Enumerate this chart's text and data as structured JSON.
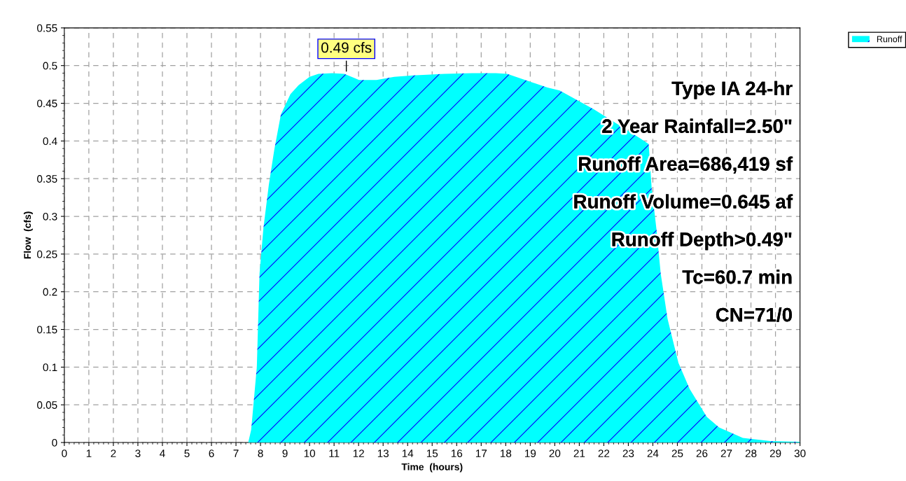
{
  "chart_data": {
    "type": "area",
    "xlabel": "Time  (hours)",
    "ylabel": "Flow  (cfs)",
    "x": [
      0,
      7.5,
      7.62,
      7.85,
      7.96,
      8.12,
      8.34,
      8.56,
      8.83,
      9.22,
      9.55,
      10.0,
      10.36,
      10.92,
      11.42,
      12.02,
      12.73,
      13.45,
      14.2,
      15.5,
      16.63,
      17.6,
      18.06,
      19.7,
      20.2,
      21.6,
      23.5,
      23.83,
      23.95,
      24.15,
      24.32,
      24.6,
      25.04,
      25.5,
      26.2,
      26.7,
      27.67,
      28.8,
      30
    ],
    "series": [
      {
        "name": "Runoff",
        "color": "#00ffff",
        "values": [
          0,
          0,
          0.017,
          0.1,
          0.224,
          0.285,
          0.342,
          0.388,
          0.435,
          0.462,
          0.474,
          0.485,
          0.489,
          0.49,
          0.489,
          0.481,
          0.481,
          0.485,
          0.487,
          0.489,
          0.49,
          0.49,
          0.489,
          0.471,
          0.467,
          0.442,
          0.403,
          0.396,
          0.338,
          0.282,
          0.224,
          0.164,
          0.106,
          0.071,
          0.034,
          0.02,
          0.006,
          0.002,
          0.001
        ]
      }
    ],
    "xlim": [
      0,
      30
    ],
    "xticks": [
      0,
      1,
      2,
      3,
      4,
      5,
      6,
      7,
      8,
      9,
      10,
      11,
      12,
      13,
      14,
      15,
      16,
      17,
      18,
      19,
      20,
      21,
      22,
      23,
      24,
      25,
      26,
      27,
      28,
      29,
      30
    ],
    "ylim": [
      0,
      0.55
    ],
    "yticks": [
      0,
      0.05,
      0.1,
      0.15,
      0.2,
      0.25,
      0.3,
      0.35,
      0.4,
      0.45,
      0.5,
      0.55
    ],
    "grid": true,
    "legend": "top right",
    "annotations": [
      {
        "text": "0.49 cfs",
        "x": 11.5,
        "y": 0.49
      },
      "Type IA 24-hr",
      "2 Year Rainfall=2.50\"",
      "Runoff Area=686,419 sf",
      "Runoff Volume=0.645 af",
      "Runoff Depth>0.49\"",
      "Tc=60.7 min",
      "CN=71/0"
    ]
  }
}
